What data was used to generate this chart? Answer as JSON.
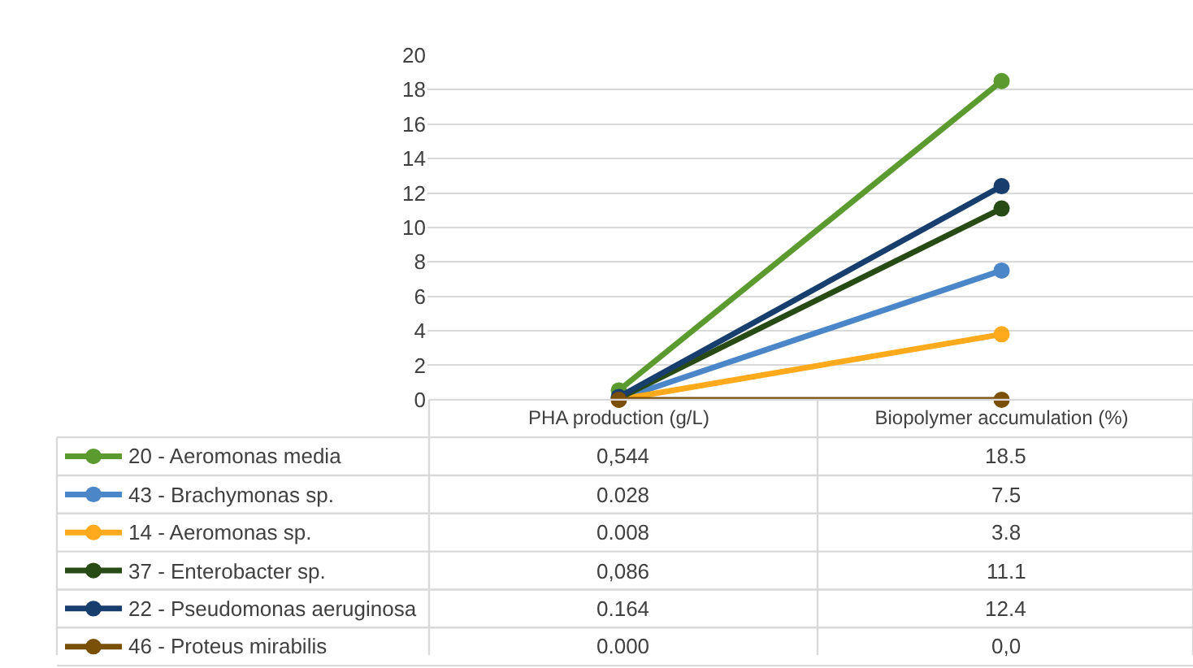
{
  "chart_data": {
    "type": "line",
    "categories": [
      "PHA production (g/L)",
      "Biopolymer accumulation (%)"
    ],
    "series": [
      {
        "name": "20 - Aeromonas media",
        "color": "#5a9a2e",
        "values": [
          0.544,
          18.5
        ],
        "value_labels": [
          "0,544",
          "18.5"
        ]
      },
      {
        "name": "43 - Brachymonas sp.",
        "color": "#4a86c8",
        "values": [
          0.028,
          7.5
        ],
        "value_labels": [
          "0.028",
          "7.5"
        ]
      },
      {
        "name": "14 - Aeromonas sp.",
        "color": "#ffaa1c",
        "values": [
          0.008,
          3.8
        ],
        "value_labels": [
          "0.008",
          "3.8"
        ]
      },
      {
        "name": "37 - Enterobacter sp.",
        "color": "#284a14",
        "values": [
          0.086,
          11.1
        ],
        "value_labels": [
          "0,086",
          "11.1"
        ]
      },
      {
        "name": "22 - Pseudomonas aeruginosa",
        "color": "#183e6e",
        "values": [
          0.164,
          12.4
        ],
        "value_labels": [
          "0.164",
          "12.4"
        ]
      },
      {
        "name": "46 - Proteus mirabilis",
        "color": "#7a4f08",
        "values": [
          0.0,
          0.0
        ],
        "value_labels": [
          "0.000",
          "0,0"
        ]
      }
    ],
    "ylim": [
      0,
      20
    ],
    "yticks": [
      0,
      2,
      4,
      6,
      8,
      10,
      12,
      14,
      16,
      18,
      20
    ],
    "grid": "y",
    "legend": "bottom left",
    "marker": "circle",
    "line_style": "solid"
  }
}
